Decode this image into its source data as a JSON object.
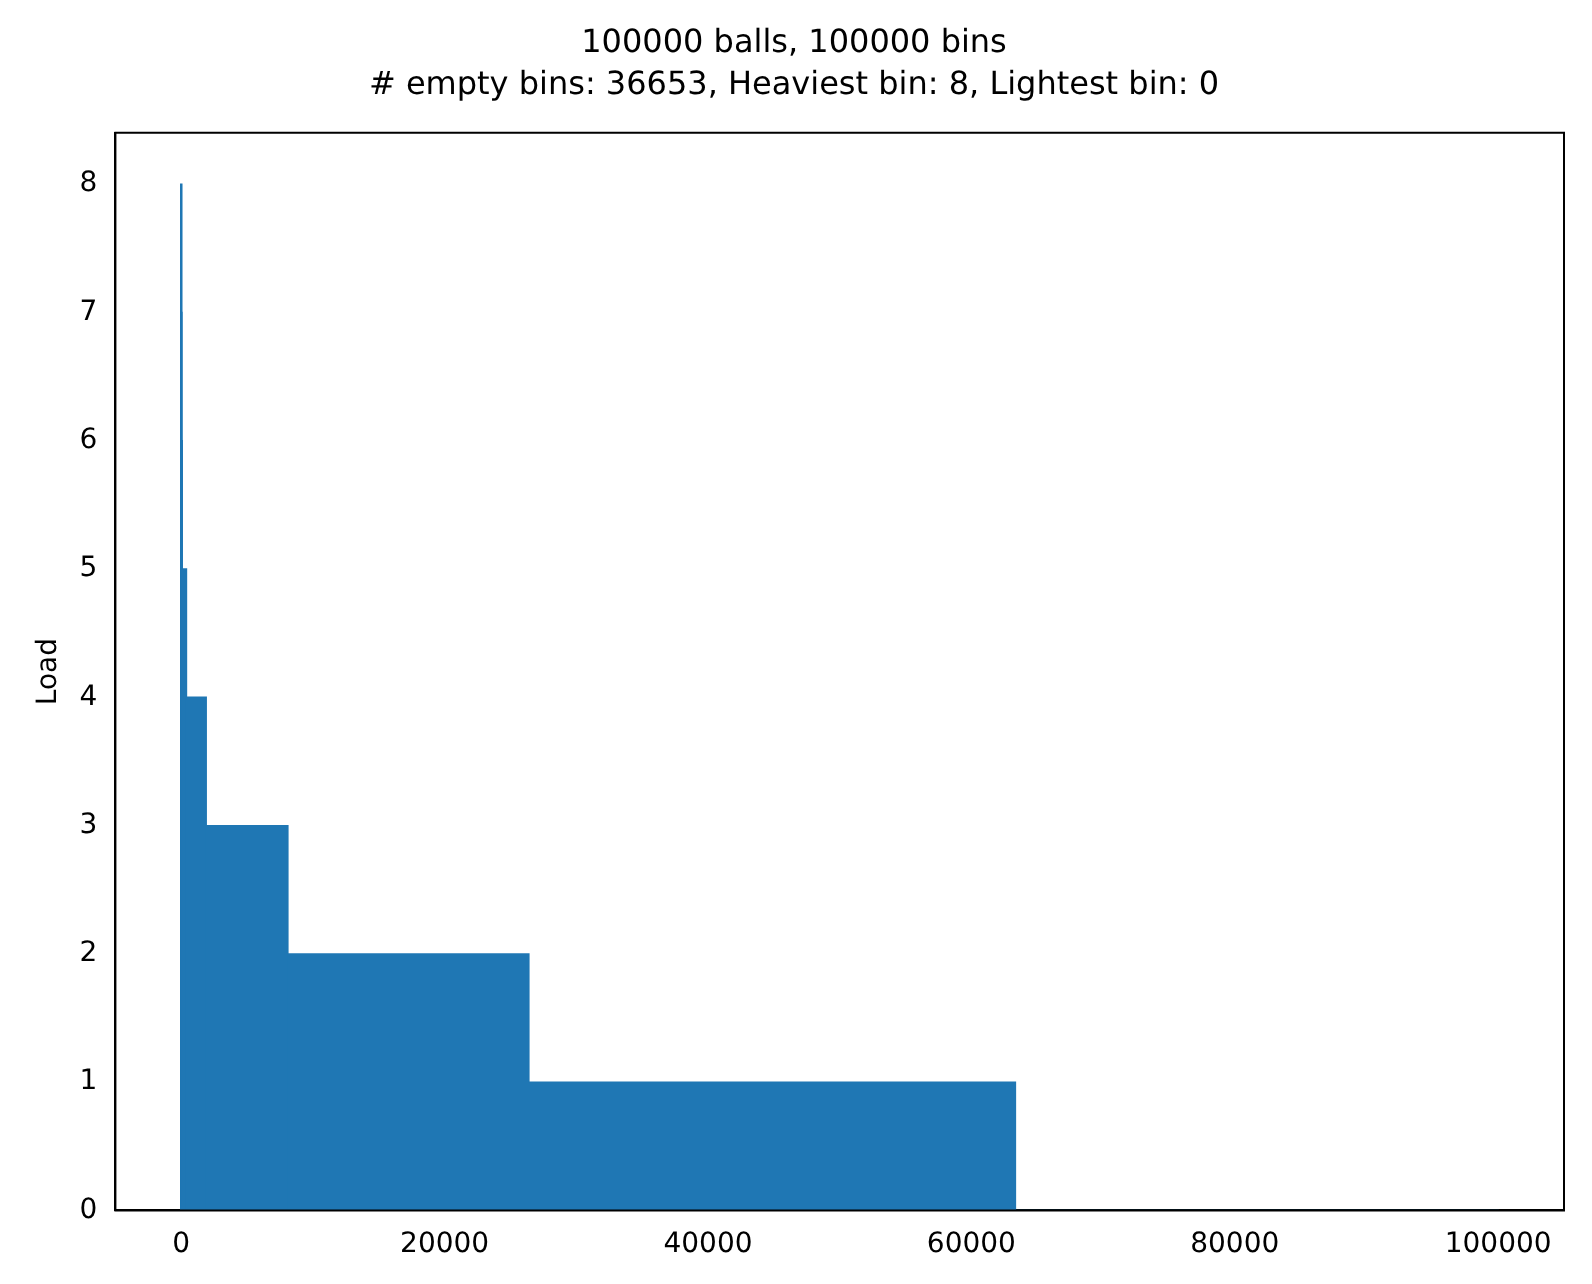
{
  "chart_data": {
    "type": "histogram",
    "title": "100000 balls, 100000 bins",
    "subtitle": "# empty bins: 36653, Heaviest bin: 8, Lightest bin: 0",
    "ylabel": "Load",
    "bins": [
      0,
      1,
      10,
      60,
      400,
      1900,
      8100,
      26400,
      63347,
      100000
    ],
    "values": [
      8,
      7,
      6,
      5,
      4,
      3,
      2,
      1,
      0
    ],
    "color": "#1f77b4",
    "xlim": [
      -5000,
      105000
    ],
    "ylim": [
      0,
      8.4
    ],
    "xticks": [
      0,
      20000,
      40000,
      60000,
      80000,
      100000
    ],
    "yticks": [
      0,
      1,
      2,
      3,
      4,
      5,
      6,
      7,
      8
    ]
  }
}
